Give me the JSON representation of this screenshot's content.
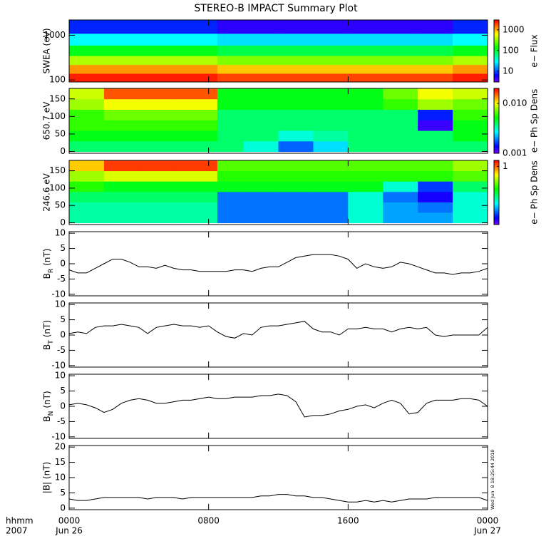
{
  "chart_data": [
    {
      "type": "heatmap",
      "title": "STEREO-B IMPACT Summary Plot",
      "ylabel": "SWEA (eV)",
      "ylog": true,
      "ylim": [
        90,
        2200
      ],
      "yticks": [
        100,
        1000
      ],
      "xlim": [
        0,
        24
      ],
      "xticks": [
        0,
        8,
        16,
        24
      ],
      "x_edges": [
        0,
        2,
        4,
        6,
        8.5,
        10,
        12,
        14,
        16,
        18,
        20,
        22,
        24
      ],
      "y_edges": [
        90,
        140,
        220,
        350,
        600,
        1100,
        2200
      ],
      "z": [
        [
          2500,
          2500,
          2500,
          2500,
          2000,
          2000,
          2000,
          2000,
          2000,
          2000,
          2000,
          2500
        ],
        [
          1200,
          1200,
          1200,
          1200,
          900,
          900,
          900,
          900,
          900,
          900,
          900,
          1200
        ],
        [
          400,
          400,
          400,
          400,
          300,
          300,
          300,
          300,
          300,
          300,
          300,
          400
        ],
        [
          120,
          120,
          120,
          120,
          90,
          90,
          90,
          90,
          90,
          90,
          90,
          120
        ],
        [
          30,
          30,
          30,
          30,
          25,
          25,
          25,
          25,
          25,
          25,
          25,
          30
        ],
        [
          8,
          8,
          8,
          8,
          5,
          5,
          5,
          5,
          5,
          5,
          5,
          8
        ]
      ],
      "zlog": true,
      "zlim": [
        3,
        3000
      ],
      "zticks": [
        10,
        100,
        1000
      ],
      "zlabel": "e− Flux",
      "colormap": "rainbow"
    },
    {
      "type": "heatmap",
      "ylabel": "650.7 eV",
      "ylog": false,
      "ylim": [
        -5,
        180
      ],
      "yticks": [
        0,
        50,
        100,
        150
      ],
      "xlim": [
        0,
        24
      ],
      "xticks": [
        0,
        8,
        16,
        24
      ],
      "x_edges": [
        0,
        2,
        4,
        6,
        8.5,
        10,
        12,
        14,
        16,
        18,
        20,
        22,
        24
      ],
      "y_edges": [
        0,
        30,
        60,
        90,
        120,
        150,
        180
      ],
      "z": [
        [
          0.004,
          0.004,
          0.004,
          0.004,
          0.004,
          0.003,
          0.0018,
          0.0025,
          0.004,
          0.004,
          0.004,
          0.004
        ],
        [
          0.005,
          0.005,
          0.005,
          0.005,
          0.004,
          0.004,
          0.003,
          0.0035,
          0.004,
          0.004,
          0.004,
          0.005
        ],
        [
          0.006,
          0.006,
          0.006,
          0.006,
          0.004,
          0.004,
          0.004,
          0.004,
          0.004,
          0.004,
          0.0012,
          0.005
        ],
        [
          0.006,
          0.007,
          0.007,
          0.007,
          0.004,
          0.004,
          0.004,
          0.004,
          0.004,
          0.004,
          0.0015,
          0.006
        ],
        [
          0.008,
          0.01,
          0.01,
          0.01,
          0.005,
          0.005,
          0.005,
          0.005,
          0.005,
          0.006,
          0.008,
          0.007
        ],
        [
          0.009,
          0.016,
          0.016,
          0.016,
          0.005,
          0.005,
          0.005,
          0.005,
          0.005,
          0.007,
          0.01,
          0.009
        ]
      ],
      "zlog": true,
      "zlim": [
        0.001,
        0.02
      ],
      "zticks": [
        0.001,
        {
          "value": 0.01,
          "label": "0.010"
        }
      ],
      "zlabel": "e− Ph Sp Dens",
      "colormap": "rainbow"
    },
    {
      "type": "heatmap",
      "ylabel": "246.6 eV",
      "ylog": false,
      "ylim": [
        -5,
        180
      ],
      "yticks": [
        0,
        50,
        100,
        150
      ],
      "xlim": [
        0,
        24
      ],
      "xticks": [
        0,
        8,
        16,
        24
      ],
      "x_edges": [
        0,
        2,
        4,
        6,
        8.5,
        10,
        12,
        14,
        16,
        18,
        20,
        22,
        24
      ],
      "y_edges": [
        0,
        30,
        60,
        90,
        120,
        150,
        180
      ],
      "z": [
        [
          0.12,
          0.12,
          0.12,
          0.12,
          0.05,
          0.05,
          0.05,
          0.05,
          0.1,
          0.06,
          0.06,
          0.1
        ],
        [
          0.12,
          0.12,
          0.12,
          0.12,
          0.05,
          0.05,
          0.05,
          0.05,
          0.1,
          0.06,
          0.05,
          0.1
        ],
        [
          0.15,
          0.15,
          0.15,
          0.15,
          0.05,
          0.05,
          0.05,
          0.05,
          0.1,
          0.05,
          0.03,
          0.1
        ],
        [
          0.25,
          0.2,
          0.2,
          0.2,
          0.2,
          0.2,
          0.2,
          0.2,
          0.2,
          0.1,
          0.04,
          0.15
        ],
        [
          0.4,
          0.5,
          0.5,
          0.5,
          0.25,
          0.25,
          0.25,
          0.25,
          0.25,
          0.25,
          0.25,
          0.3
        ],
        [
          0.7,
          1.2,
          1.2,
          1.2,
          0.3,
          0.3,
          0.3,
          0.3,
          0.3,
          0.3,
          0.3,
          0.4
        ]
      ],
      "zlog": true,
      "zlim": [
        0.02,
        1.5
      ],
      "zticks": [
        1
      ],
      "zlabel": "e− Ph Sp Dens",
      "colormap": "rainbow"
    },
    {
      "type": "line",
      "ylabel": {
        "main": "B",
        "sub": "R",
        "rest": "(nT)"
      },
      "color": "#000000",
      "ylim": [
        -10.5,
        10.5
      ],
      "yticks": [
        -10,
        -5,
        0,
        5,
        10
      ],
      "xlim": [
        0,
        24
      ],
      "xticks": [
        0,
        8,
        16,
        24
      ],
      "x": [
        0,
        0.5,
        1,
        1.5,
        2,
        2.5,
        3,
        3.5,
        4,
        4.5,
        5,
        5.5,
        6,
        6.5,
        7,
        7.5,
        8,
        8.5,
        9,
        9.5,
        10,
        10.5,
        11,
        11.5,
        12,
        12.5,
        13,
        13.5,
        14,
        14.5,
        15,
        15.5,
        16,
        16.5,
        17,
        17.5,
        18,
        18.5,
        19,
        19.5,
        20,
        20.5,
        21,
        21.5,
        22,
        22.5,
        23,
        23.5,
        24
      ],
      "values": [
        -2,
        -3,
        -3,
        -1.5,
        0,
        1.5,
        1.5,
        0.5,
        -1,
        -1,
        -1.5,
        -0.5,
        -1.5,
        -2,
        -2,
        -2.5,
        -2.5,
        -2.5,
        -2.5,
        -2,
        -2,
        -2.5,
        -1.5,
        -1,
        -1,
        0.5,
        2,
        2.5,
        3,
        3,
        3,
        2.5,
        1.5,
        -1.5,
        0,
        -1,
        -1.5,
        -1,
        0.5,
        0,
        -1,
        -2,
        -3,
        -3,
        -3.5,
        -3,
        -3,
        -2.5,
        -1.5
      ]
    },
    {
      "type": "line",
      "ylabel": {
        "main": "B",
        "sub": "T",
        "rest": "(nT)"
      },
      "color": "#000000",
      "ylim": [
        -10.5,
        10.5
      ],
      "yticks": [
        -10,
        -5,
        0,
        5,
        10
      ],
      "xlim": [
        0,
        24
      ],
      "xticks": [
        0,
        8,
        16,
        24
      ],
      "x": [
        0,
        0.5,
        1,
        1.5,
        2,
        2.5,
        3,
        3.5,
        4,
        4.5,
        5,
        5.5,
        6,
        6.5,
        7,
        7.5,
        8,
        8.5,
        9,
        9.5,
        10,
        10.5,
        11,
        11.5,
        12,
        12.5,
        13,
        13.5,
        14,
        14.5,
        15,
        15.5,
        16,
        16.5,
        17,
        17.5,
        18,
        18.5,
        19,
        19.5,
        20,
        20.5,
        21,
        21.5,
        22,
        22.5,
        23,
        23.5,
        24
      ],
      "values": [
        0.5,
        1,
        0.5,
        2.5,
        3,
        3,
        3.5,
        3,
        2.5,
        0.5,
        2.5,
        3,
        3.5,
        3,
        3,
        2.5,
        3,
        1,
        -0.5,
        -1,
        0.5,
        0,
        2.5,
        3,
        3,
        3.5,
        4,
        4.5,
        2,
        1,
        1,
        0,
        2,
        2,
        2.5,
        2,
        2,
        1,
        2,
        2.5,
        2,
        2.5,
        0,
        -0.5,
        0,
        0,
        0,
        0,
        2.5
      ]
    },
    {
      "type": "line",
      "ylabel": {
        "main": "B",
        "sub": "N",
        "rest": "(nT)"
      },
      "color": "#000000",
      "ylim": [
        -10.5,
        10.5
      ],
      "yticks": [
        -10,
        -5,
        0,
        5,
        10
      ],
      "xlim": [
        0,
        24
      ],
      "xticks": [
        0,
        8,
        16,
        24
      ],
      "x": [
        0,
        0.5,
        1,
        1.5,
        2,
        2.5,
        3,
        3.5,
        4,
        4.5,
        5,
        5.5,
        6,
        6.5,
        7,
        7.5,
        8,
        8.5,
        9,
        9.5,
        10,
        10.5,
        11,
        11.5,
        12,
        12.5,
        13,
        13.5,
        14,
        14.5,
        15,
        15.5,
        16,
        16.5,
        17,
        17.5,
        18,
        18.5,
        19,
        19.5,
        20,
        20.5,
        21,
        21.5,
        22,
        22.5,
        23,
        23.5,
        24
      ],
      "values": [
        0.5,
        1,
        0.5,
        -0.5,
        -2,
        -1,
        1,
        2,
        2.5,
        2,
        1,
        1,
        1.5,
        2,
        2,
        2.5,
        3,
        2.5,
        2.5,
        3,
        3,
        3,
        3.5,
        3.5,
        4,
        3.5,
        1.5,
        -3.5,
        -3,
        -3,
        -2.5,
        -1.5,
        -1,
        0,
        0.5,
        -0.5,
        1,
        2,
        1,
        -2.5,
        -2,
        1,
        2,
        2,
        2,
        2.5,
        2.5,
        2,
        0
      ]
    },
    {
      "type": "line",
      "ylabel": "|B| (nT)",
      "color": "#000000",
      "ylim": [
        -0.5,
        20.5
      ],
      "yticks": [
        0,
        5,
        10,
        15,
        20
      ],
      "xlim": [
        0,
        24
      ],
      "xticks": [
        {
          "value": 0,
          "label": "0000"
        },
        {
          "value": 8,
          "label": "0800"
        },
        {
          "value": 16,
          "label": "1600"
        },
        {
          "value": 24,
          "label": "0000"
        }
      ],
      "x_dates": [
        {
          "value": 0,
          "label": "Jun 26"
        },
        {
          "value": 24,
          "label": "Jun 27"
        }
      ],
      "xlabel": [
        "hhmm",
        "2007"
      ],
      "timestamp": "Wed Jun  8 18:25:44 2010",
      "x": [
        0,
        0.5,
        1,
        1.5,
        2,
        2.5,
        3,
        3.5,
        4,
        4.5,
        5,
        5.5,
        6,
        6.5,
        7,
        7.5,
        8,
        8.5,
        9,
        9.5,
        10,
        10.5,
        11,
        11.5,
        12,
        12.5,
        13,
        13.5,
        14,
        14.5,
        15,
        15.5,
        16,
        16.5,
        17,
        17.5,
        18,
        18.5,
        19,
        19.5,
        20,
        20.5,
        21,
        21.5,
        22,
        22.5,
        23,
        23.5,
        24
      ],
      "values": [
        3,
        2.5,
        2.5,
        3,
        3.5,
        3.5,
        3.5,
        3.5,
        3.5,
        3,
        3.5,
        3.5,
        3.5,
        3,
        3.5,
        3.5,
        3.5,
        3.5,
        3.5,
        3.5,
        3.5,
        3.5,
        4,
        4,
        4.5,
        4.5,
        4,
        4,
        3.5,
        3.5,
        3,
        2.5,
        2,
        2,
        2.5,
        2,
        2.5,
        2,
        2.5,
        3,
        3,
        3,
        3.5,
        3.5,
        3.5,
        3.5,
        3.5,
        3.5,
        2.5
      ]
    }
  ]
}
